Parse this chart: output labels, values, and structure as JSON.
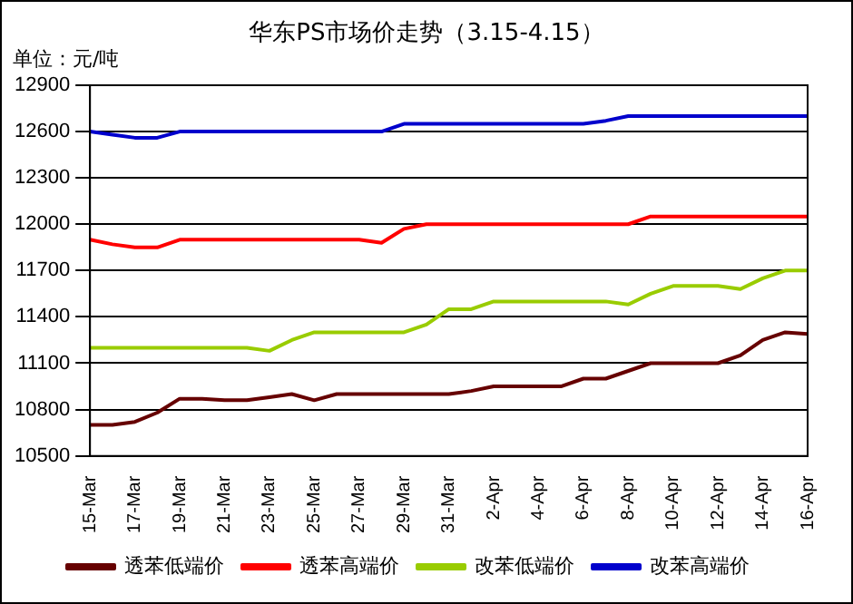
{
  "chart_data": {
    "type": "line",
    "title": "华东PS市场价走势（3.15-4.15）",
    "ylabel": "单位：元/吨",
    "categories": [
      "15-Mar",
      null,
      "17-Mar",
      null,
      "19-Mar",
      null,
      "21-Mar",
      null,
      "23-Mar",
      null,
      "25-Mar",
      null,
      "27-Mar",
      null,
      "29-Mar",
      null,
      "31-Mar",
      null,
      "2-Apr",
      null,
      "4-Apr",
      null,
      "6-Apr",
      null,
      "8-Apr",
      null,
      "10-Apr",
      null,
      "12-Apr",
      null,
      "14-Apr",
      null,
      "16-Apr"
    ],
    "series": [
      {
        "name": "透苯低端价",
        "color": "#660000",
        "values": [
          10700,
          10700,
          10720,
          10780,
          10870,
          10870,
          10860,
          10860,
          10880,
          10900,
          10860,
          10900,
          10900,
          10900,
          10900,
          10900,
          10900,
          10920,
          10950,
          10950,
          10950,
          10950,
          11000,
          11000,
          11050,
          11100,
          11100,
          11100,
          11100,
          11150,
          11250,
          11300,
          11290
        ]
      },
      {
        "name": "透苯高端价",
        "color": "#ff0000",
        "values": [
          11900,
          11870,
          11850,
          11850,
          11900,
          11900,
          11900,
          11900,
          11900,
          11900,
          11900,
          11900,
          11900,
          11880,
          11970,
          12000,
          12000,
          12000,
          12000,
          12000,
          12000,
          12000,
          12000,
          12000,
          12000,
          12050,
          12050,
          12050,
          12050,
          12050,
          12050,
          12050,
          12050
        ]
      },
      {
        "name": "改苯低端价",
        "color": "#99cc00",
        "values": [
          11200,
          11200,
          11200,
          11200,
          11200,
          11200,
          11200,
          11200,
          11180,
          11250,
          11300,
          11300,
          11300,
          11300,
          11300,
          11350,
          11450,
          11450,
          11500,
          11500,
          11500,
          11500,
          11500,
          11500,
          11480,
          11550,
          11600,
          11600,
          11600,
          11580,
          11650,
          11700,
          11700
        ]
      },
      {
        "name": "改苯高端价",
        "color": "#0000cc",
        "values": [
          12600,
          12580,
          12560,
          12560,
          12600,
          12600,
          12600,
          12600,
          12600,
          12600,
          12600,
          12600,
          12600,
          12600,
          12650,
          12650,
          12650,
          12650,
          12650,
          12650,
          12650,
          12650,
          12650,
          12670,
          12700,
          12700,
          12700,
          12700,
          12700,
          12700,
          12700,
          12700,
          12700
        ]
      }
    ],
    "ylim": [
      10500,
      12900
    ],
    "yticks": [
      10500,
      10800,
      11100,
      11400,
      11700,
      12000,
      12300,
      12600,
      12900
    ],
    "grid": "y",
    "legend": "bottom",
    "marker": "none",
    "line_style": "solid"
  }
}
